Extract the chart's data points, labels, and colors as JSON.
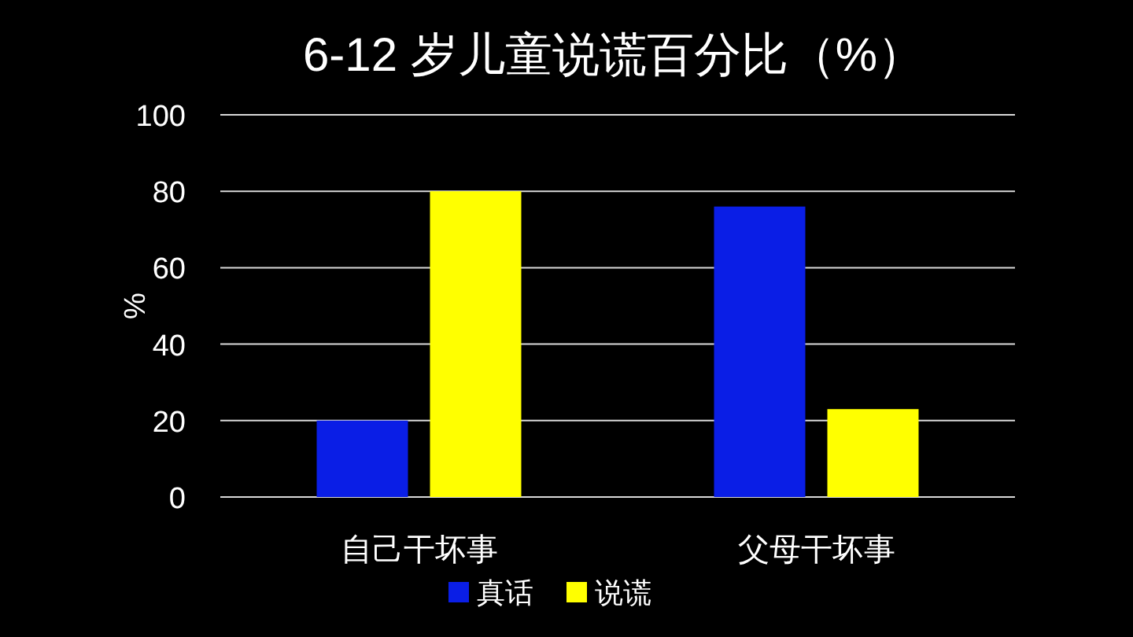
{
  "chart_data": {
    "type": "bar",
    "title": "6-12 岁儿童说谎百分比（%）",
    "ylabel": "%",
    "categories": [
      "自己干坏事",
      "父母干坏事"
    ],
    "series": [
      {
        "name": "真话",
        "color": "#0a1ee6",
        "values": [
          20,
          76
        ]
      },
      {
        "name": "说谎",
        "color": "#ffff00",
        "values": [
          80,
          23
        ]
      }
    ],
    "ylim": [
      0,
      100
    ],
    "yticks": [
      0,
      20,
      40,
      60,
      80,
      100
    ],
    "grid": "y",
    "legend": "bottom"
  }
}
